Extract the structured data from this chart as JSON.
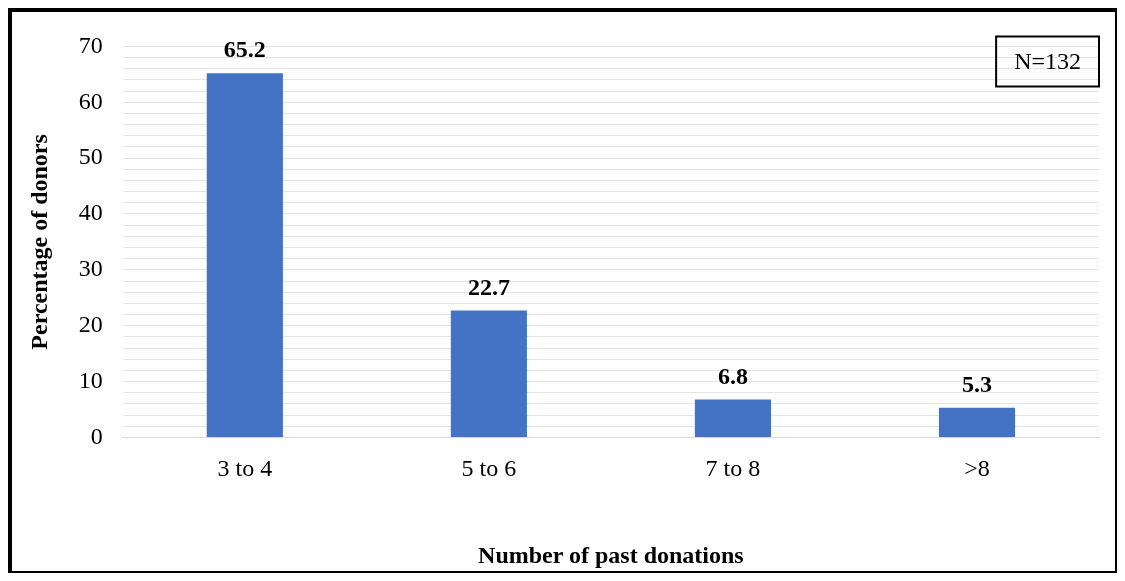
{
  "chart_data": {
    "type": "bar",
    "xlabel": "Number of past donations",
    "ylabel": "Percentage of donors",
    "categories": [
      "3 to 4",
      "5 to 6",
      "7 to 8",
      ">8"
    ],
    "values": [
      65.2,
      22.7,
      6.8,
      5.3
    ],
    "color": "#4472c4",
    "ylim": [
      0,
      70
    ],
    "yticks": [
      0,
      {
        "value": 2,
        "label": null
      },
      {
        "value": 4,
        "label": null
      },
      {
        "value": 6,
        "label": null
      },
      {
        "value": 8,
        "label": null
      },
      10,
      {
        "value": 12,
        "label": null
      },
      {
        "value": 14,
        "label": null
      },
      {
        "value": 16,
        "label": null
      },
      {
        "value": 18,
        "label": null
      },
      20,
      {
        "value": 22,
        "label": null
      },
      {
        "value": 24,
        "label": null
      },
      {
        "value": 26,
        "label": null
      },
      {
        "value": 28,
        "label": null
      },
      30,
      {
        "value": 32,
        "label": null
      },
      {
        "value": 34,
        "label": null
      },
      {
        "value": 36,
        "label": null
      },
      {
        "value": 38,
        "label": null
      },
      40,
      {
        "value": 42,
        "label": null
      },
      {
        "value": 44,
        "label": null
      },
      {
        "value": 46,
        "label": null
      },
      {
        "value": 48,
        "label": null
      },
      50,
      {
        "value": 52,
        "label": null
      },
      {
        "value": 54,
        "label": null
      },
      {
        "value": 56,
        "label": null
      },
      {
        "value": 58,
        "label": null
      },
      60,
      {
        "value": 62,
        "label": null
      },
      {
        "value": 64,
        "label": null
      },
      {
        "value": 66,
        "label": null
      },
      {
        "value": 68,
        "label": null
      },
      70
    ],
    "grid": "y",
    "data_labels": true,
    "legend": false,
    "annotations": [
      "N=132"
    ]
  }
}
